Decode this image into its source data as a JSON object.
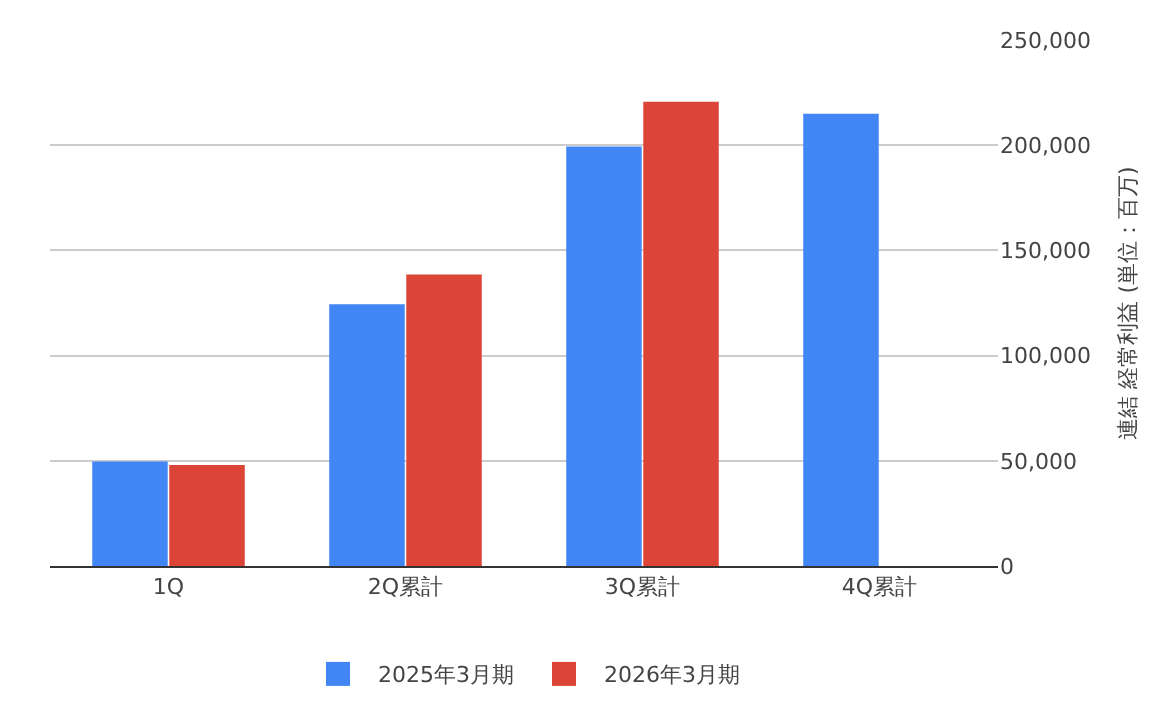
{
  "chart_data": {
    "type": "bar",
    "ylabel": "連結 経常利益 (単位：百万)",
    "categories": [
      "1Q",
      "2Q累計",
      "3Q累計",
      "4Q累計"
    ],
    "series": [
      {
        "name": "2025年3月期",
        "color": "#4285f4",
        "values": [
          49700,
          124400,
          199400,
          215000
        ]
      },
      {
        "name": "2026年3月期",
        "color": "#db4437",
        "values": [
          48000,
          138500,
          220600,
          null
        ]
      }
    ],
    "ylim": [
      0,
      250000
    ],
    "yticks": [
      {
        "value": 0,
        "label": "0"
      },
      {
        "value": 50000,
        "label": "50,000"
      },
      {
        "value": 100000,
        "label": "100,000"
      },
      {
        "value": 150000,
        "label": "150,000"
      },
      {
        "value": 200000,
        "label": "200,000"
      },
      {
        "value": 250000,
        "label": "250,000"
      }
    ],
    "grid": "y",
    "legend": "bottom"
  }
}
